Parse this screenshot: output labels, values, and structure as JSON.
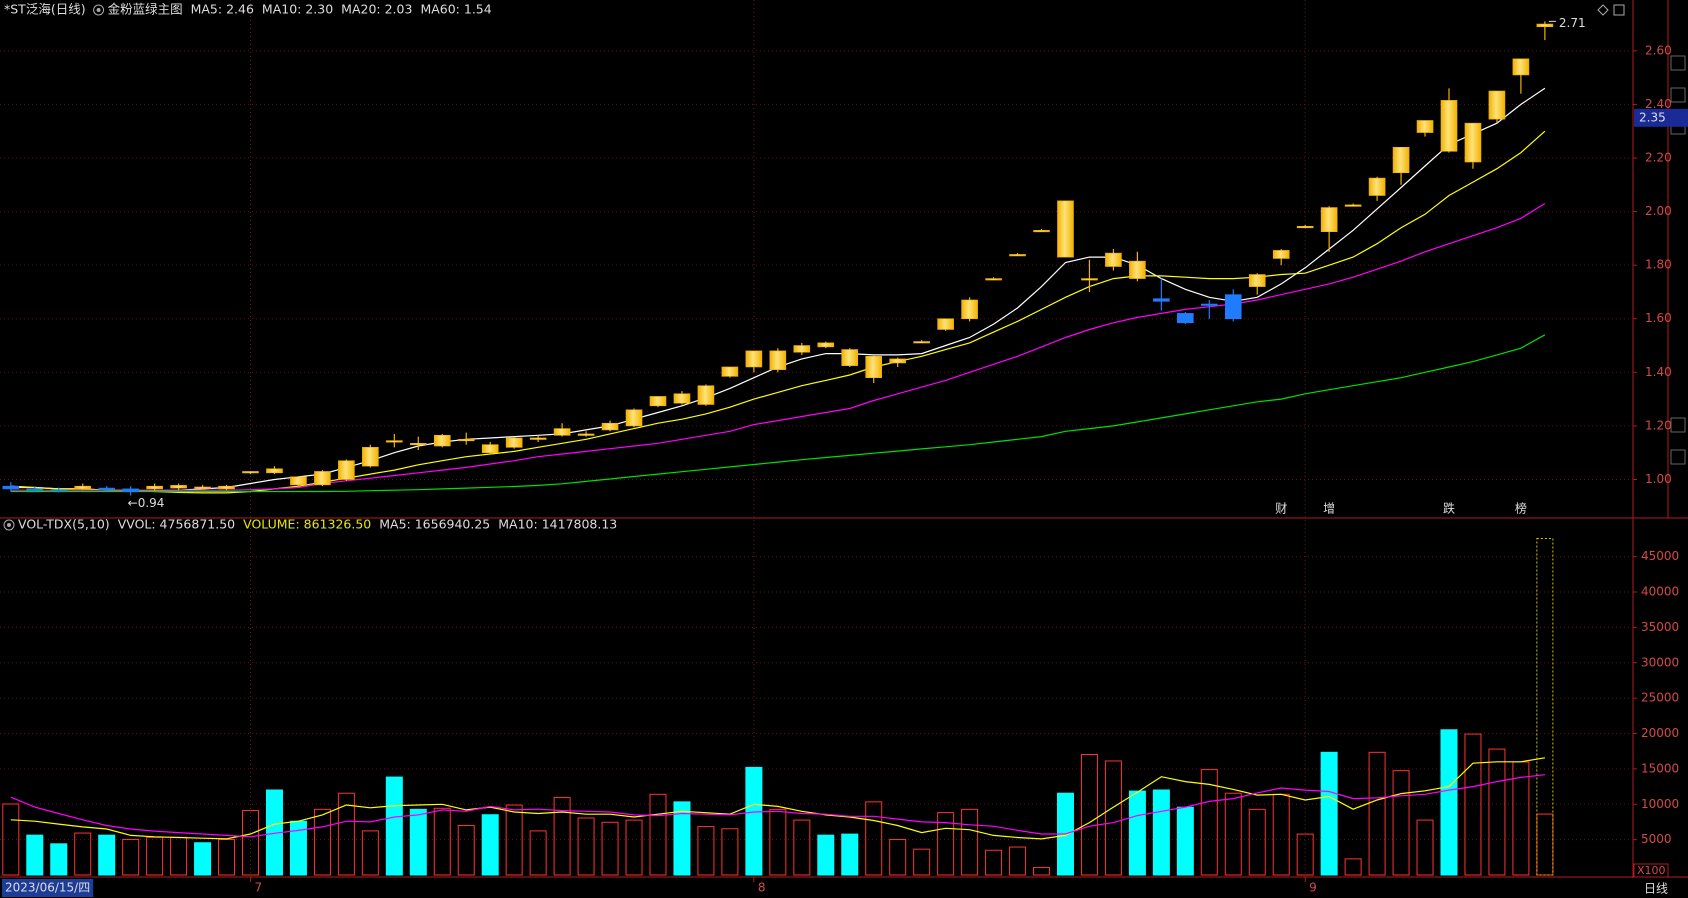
{
  "chart_data": [
    {
      "type": "candlestick",
      "title": "*ST泛海(日线)",
      "subtitle": "金粉蓝绿主图",
      "categories": [
        "2023/06/15/四",
        null,
        null,
        null,
        null,
        null,
        null,
        null,
        null,
        null,
        "7",
        null,
        null,
        null,
        null,
        null,
        null,
        null,
        null,
        null,
        null,
        null,
        null,
        null,
        null,
        null,
        null,
        null,
        null,
        null,
        null,
        "8",
        null,
        null,
        null,
        null,
        null,
        null,
        null,
        null,
        null,
        null,
        null,
        null,
        null,
        null,
        null,
        null,
        null,
        null,
        null,
        null,
        null,
        null,
        "9",
        null,
        null,
        null,
        null,
        null,
        null,
        null,
        null,
        null,
        null
      ],
      "ohlc": [
        [
          0.975,
          0.99,
          0.955,
          0.965
        ],
        [
          0.965,
          0.975,
          0.955,
          0.958
        ],
        [
          0.962,
          0.97,
          0.952,
          0.96
        ],
        [
          0.965,
          0.985,
          0.96,
          0.975
        ],
        [
          0.968,
          0.975,
          0.955,
          0.962
        ],
        [
          0.965,
          0.975,
          0.94,
          0.955
        ],
        [
          0.965,
          0.985,
          0.958,
          0.975
        ],
        [
          0.968,
          0.985,
          0.96,
          0.978
        ],
        [
          0.97,
          0.98,
          0.962,
          0.972
        ],
        [
          0.965,
          0.98,
          0.96,
          0.975
        ],
        [
          1.025,
          1.03,
          1.02,
          1.03
        ],
        [
          1.025,
          1.05,
          1.02,
          1.04
        ],
        [
          0.98,
          1.01,
          0.975,
          1.01
        ],
        [
          0.98,
          1.035,
          0.975,
          1.03
        ],
        [
          1.0,
          1.075,
          0.995,
          1.07
        ],
        [
          1.05,
          1.13,
          1.045,
          1.12
        ],
        [
          1.14,
          1.17,
          1.12,
          1.145
        ],
        [
          1.13,
          1.16,
          1.11,
          1.135
        ],
        [
          1.125,
          1.17,
          1.12,
          1.165
        ],
        [
          1.145,
          1.175,
          1.13,
          1.15
        ],
        [
          1.1,
          1.14,
          1.095,
          1.13
        ],
        [
          1.12,
          1.16,
          1.115,
          1.155
        ],
        [
          1.15,
          1.165,
          1.14,
          1.155
        ],
        [
          1.165,
          1.21,
          1.16,
          1.19
        ],
        [
          1.165,
          1.18,
          1.16,
          1.17
        ],
        [
          1.185,
          1.22,
          1.18,
          1.21
        ],
        [
          1.2,
          1.265,
          1.195,
          1.26
        ],
        [
          1.275,
          1.31,
          1.27,
          1.31
        ],
        [
          1.285,
          1.33,
          1.28,
          1.32
        ],
        [
          1.28,
          1.355,
          1.275,
          1.35
        ],
        [
          1.385,
          1.42,
          1.38,
          1.42
        ],
        [
          1.42,
          1.48,
          1.4,
          1.48
        ],
        [
          1.41,
          1.49,
          1.4,
          1.48
        ],
        [
          1.475,
          1.51,
          1.465,
          1.5
        ],
        [
          1.495,
          1.515,
          1.49,
          1.51
        ],
        [
          1.425,
          1.49,
          1.42,
          1.485
        ],
        [
          1.38,
          1.465,
          1.36,
          1.46
        ],
        [
          1.435,
          1.455,
          1.42,
          1.45
        ],
        [
          1.51,
          1.52,
          1.51,
          1.515
        ],
        [
          1.56,
          1.6,
          1.555,
          1.6
        ],
        [
          1.6,
          1.68,
          1.59,
          1.67
        ],
        [
          1.75,
          1.755,
          1.745,
          1.75
        ],
        [
          1.84,
          1.845,
          1.835,
          1.84
        ],
        [
          1.93,
          1.935,
          1.93,
          1.93
        ],
        [
          1.83,
          2.04,
          1.83,
          2.04
        ],
        [
          1.75,
          1.82,
          1.7,
          1.75
        ],
        [
          1.795,
          1.86,
          1.78,
          1.845
        ],
        [
          1.75,
          1.85,
          1.74,
          1.815
        ],
        [
          1.675,
          1.75,
          1.63,
          1.665
        ],
        [
          1.62,
          1.625,
          1.58,
          1.585
        ],
        [
          1.655,
          1.67,
          1.6,
          1.65
        ],
        [
          1.69,
          1.71,
          1.59,
          1.6
        ],
        [
          1.72,
          1.77,
          1.69,
          1.765
        ],
        [
          1.825,
          1.86,
          1.8,
          1.855
        ],
        [
          1.945,
          1.95,
          1.94,
          1.945
        ],
        [
          1.925,
          2.02,
          1.85,
          2.015
        ],
        [
          2.025,
          2.03,
          2.02,
          2.025
        ],
        [
          2.06,
          2.13,
          2.04,
          2.125
        ],
        [
          2.145,
          2.24,
          2.1,
          2.24
        ],
        [
          2.295,
          2.34,
          2.28,
          2.34
        ],
        [
          2.225,
          2.46,
          2.22,
          2.415
        ],
        [
          2.185,
          2.33,
          2.16,
          2.33
        ],
        [
          2.345,
          2.45,
          2.33,
          2.45
        ],
        [
          2.51,
          2.57,
          2.44,
          2.57
        ],
        [
          2.69,
          2.71,
          2.64,
          2.7
        ]
      ],
      "up_color": "#f2b200",
      "down_color": "#1f7cff",
      "series": [
        {
          "name": "MA5: 2.46",
          "color": "#ffffff",
          "values": [
            0.975,
            0.97,
            0.965,
            0.965,
            0.96,
            0.96,
            0.958,
            0.96,
            0.965,
            0.97,
            0.985,
            1.0,
            1.01,
            1.02,
            1.045,
            1.07,
            1.1,
            1.125,
            1.14,
            1.15,
            1.155,
            1.16,
            1.165,
            1.17,
            1.185,
            1.2,
            1.225,
            1.25,
            1.275,
            1.305,
            1.34,
            1.38,
            1.42,
            1.45,
            1.47,
            1.47,
            1.465,
            1.465,
            1.47,
            1.5,
            1.53,
            1.58,
            1.64,
            1.72,
            1.81,
            1.83,
            1.83,
            1.8,
            1.75,
            1.71,
            1.68,
            1.665,
            1.68,
            1.73,
            1.79,
            1.86,
            1.93,
            2.01,
            2.09,
            2.17,
            2.25,
            2.29,
            2.33,
            2.4,
            2.46
          ]
        },
        {
          "name": "MA10: 2.30",
          "color": "#ffff00",
          "values": [
            0.97,
            0.97,
            0.965,
            0.965,
            0.96,
            0.958,
            0.955,
            0.952,
            0.95,
            0.95,
            0.955,
            0.965,
            0.975,
            0.99,
            1.005,
            1.02,
            1.035,
            1.055,
            1.07,
            1.085,
            1.095,
            1.105,
            1.12,
            1.135,
            1.15,
            1.17,
            1.19,
            1.21,
            1.225,
            1.245,
            1.27,
            1.3,
            1.325,
            1.35,
            1.37,
            1.39,
            1.42,
            1.44,
            1.46,
            1.485,
            1.51,
            1.55,
            1.59,
            1.635,
            1.68,
            1.72,
            1.75,
            1.76,
            1.76,
            1.755,
            1.75,
            1.75,
            1.755,
            1.765,
            1.77,
            1.8,
            1.83,
            1.88,
            1.94,
            1.99,
            2.06,
            2.11,
            2.16,
            2.22,
            2.3
          ]
        },
        {
          "name": "MA20: 2.03",
          "color": "#ff00ff",
          "values": [
            0.96,
            0.96,
            0.96,
            0.96,
            0.96,
            0.96,
            0.96,
            0.96,
            0.96,
            0.96,
            0.962,
            0.965,
            0.97,
            0.985,
            0.995,
            1.005,
            1.015,
            1.025,
            1.035,
            1.045,
            1.058,
            1.07,
            1.085,
            1.095,
            1.105,
            1.115,
            1.125,
            1.135,
            1.15,
            1.165,
            1.18,
            1.205,
            1.22,
            1.235,
            1.25,
            1.265,
            1.295,
            1.32,
            1.345,
            1.37,
            1.4,
            1.43,
            1.46,
            1.495,
            1.53,
            1.56,
            1.585,
            1.605,
            1.62,
            1.635,
            1.645,
            1.655,
            1.67,
            1.69,
            1.71,
            1.73,
            1.755,
            1.785,
            1.815,
            1.85,
            1.88,
            1.91,
            1.94,
            1.975,
            2.03
          ]
        },
        {
          "name": "MA60: 1.54",
          "color": "#00e000",
          "values": [
            0.955,
            0.955,
            0.955,
            0.955,
            0.955,
            0.955,
            0.955,
            0.955,
            0.955,
            0.955,
            0.955,
            0.955,
            0.955,
            0.955,
            0.956,
            0.958,
            0.96,
            0.962,
            0.965,
            0.968,
            0.971,
            0.974,
            0.978,
            0.984,
            0.993,
            1.002,
            1.011,
            1.02,
            1.029,
            1.038,
            1.047,
            1.056,
            1.065,
            1.074,
            1.082,
            1.09,
            1.098,
            1.106,
            1.114,
            1.122,
            1.13,
            1.14,
            1.15,
            1.16,
            1.18,
            1.19,
            1.2,
            1.215,
            1.23,
            1.245,
            1.26,
            1.275,
            1.29,
            1.3,
            1.32,
            1.335,
            1.35,
            1.365,
            1.38,
            1.4,
            1.42,
            1.44,
            1.465,
            1.49,
            1.54
          ]
        }
      ],
      "ylim": [
        0.86,
        2.73
      ],
      "yticks": [
        {
          "value": 1.0,
          "label": "1.00"
        },
        {
          "value": 1.2,
          "label": "1.20"
        },
        {
          "value": 1.4,
          "label": "1.40"
        },
        {
          "value": 1.6,
          "label": "1.60"
        },
        {
          "value": 1.8,
          "label": "1.80"
        },
        {
          "value": 2.0,
          "label": "2.00"
        },
        {
          "value": 2.2,
          "label": "2.20"
        },
        {
          "value": 2.4,
          "label": "2.40"
        },
        {
          "value": 2.6,
          "label": "2.60"
        }
      ],
      "grid": true,
      "high_mark": 2.71,
      "low_mark": {
        "value": 0.94,
        "label": "←0.94"
      },
      "cursor": 2.35,
      "events": [
        null,
        null,
        null,
        null,
        null,
        null,
        null,
        null,
        null,
        null,
        null,
        null,
        null,
        null,
        null,
        null,
        null,
        null,
        null,
        null,
        null,
        null,
        null,
        null,
        null,
        null,
        null,
        null,
        null,
        null,
        null,
        null,
        null,
        null,
        null,
        null,
        null,
        null,
        null,
        null,
        null,
        null,
        null,
        null,
        null,
        null,
        null,
        null,
        null,
        null,
        null,
        null,
        null,
        {
          "label": "财",
          "color": "#3d8bff"
        },
        null,
        {
          "label": "增",
          "color": "#ff5a6e"
        },
        null,
        null,
        null,
        null,
        {
          "label": "跌",
          "color": "#3ad13a"
        },
        null,
        null,
        {
          "label": "榜",
          "color": "#ffae80"
        },
        null
      ]
    },
    {
      "type": "bar",
      "title": "VOL-TDX(5,10)",
      "subtitle": "VVOL: 4756871.50",
      "series": [
        {
          "name": "VOLUME: 861326.50",
          "color": "#ff3232",
          "down_color": "#00ffff",
          "values": [
            10040,
            5630,
            4410,
            5930,
            5630,
            5020,
            5320,
            5320,
            4560,
            5020,
            9125,
            12015,
            7600,
            9280,
            11560,
            6235,
            13840,
            9280,
            9430,
            7000,
            8520,
            9890,
            6235,
            10950,
            8060,
            7450,
            7760,
            11410,
            10340,
            6845,
            6540,
            15210,
            9280,
            7760,
            5630,
            5780,
            10340,
            5020,
            3650,
            8820,
            9280,
            3500,
            3950,
            1065,
            11560,
            17030,
            16120,
            11860,
            12015,
            9580,
            14900,
            11560,
            9280,
            11410,
            5780,
            17340,
            2280,
            17340,
            14750,
            7760,
            20530,
            19920,
            17800,
            15970,
            8613.265
          ],
          "down": [
            false,
            true,
            true,
            false,
            true,
            false,
            false,
            false,
            true,
            false,
            false,
            true,
            true,
            false,
            false,
            false,
            true,
            true,
            false,
            false,
            true,
            false,
            false,
            false,
            false,
            false,
            false,
            false,
            true,
            false,
            false,
            true,
            false,
            false,
            true,
            true,
            false,
            false,
            false,
            false,
            false,
            false,
            false,
            false,
            true,
            false,
            false,
            true,
            true,
            true,
            false,
            false,
            false,
            false,
            false,
            true,
            false,
            false,
            false,
            false,
            true,
            false,
            false,
            false,
            false
          ]
        },
        {
          "name": "MA5: 1656940.25",
          "color": "#ffff00",
          "values": [
            7800,
            7600,
            7200,
            6800,
            6500,
            5600,
            5400,
            5300,
            5200,
            5100,
            5800,
            7200,
            7600,
            8500,
            9900,
            9500,
            9800,
            9900,
            10000,
            9200,
            9600,
            8900,
            8700,
            8900,
            8600,
            8600,
            8200,
            8600,
            9000,
            8800,
            8600,
            10000,
            9700,
            9000,
            8500,
            8200,
            7700,
            7000,
            6000,
            6600,
            6400,
            5600,
            5300,
            5100,
            5600,
            7400,
            9600,
            11700,
            13900,
            13200,
            12800,
            12100,
            11300,
            11400,
            10600,
            11100,
            9300,
            10600,
            11500,
            11900,
            12500,
            15800,
            16000,
            16000,
            16569.4
          ]
        },
        {
          "name": "MA10: 1417808.13",
          "color": "#ff00ff",
          "values": [
            11000,
            9600,
            8700,
            7800,
            7000,
            6500,
            6200,
            6000,
            5800,
            5600,
            5400,
            5900,
            6300,
            6800,
            7600,
            7500,
            8200,
            8500,
            9200,
            9000,
            9700,
            9200,
            9300,
            9100,
            9000,
            8900,
            8500,
            8400,
            8700,
            8600,
            8500,
            8900,
            9000,
            8700,
            8600,
            8300,
            8300,
            7900,
            7500,
            7400,
            7100,
            6900,
            6300,
            5800,
            5800,
            6900,
            7400,
            8400,
            9000,
            9600,
            10400,
            10800,
            11600,
            12300,
            12000,
            11800,
            10800,
            10900,
            11200,
            11400,
            12000,
            12500,
            13200,
            13800,
            14178.08
          ]
        }
      ],
      "projected": 47568.7,
      "projected_color": "#d4c400",
      "ylim": [
        0,
        48200
      ],
      "yticks": [
        5000,
        10000,
        15000,
        20000,
        25000,
        30000,
        35000,
        40000,
        45000
      ],
      "grid": true,
      "unit_label": "X100",
      "period_label": "日线"
    }
  ]
}
